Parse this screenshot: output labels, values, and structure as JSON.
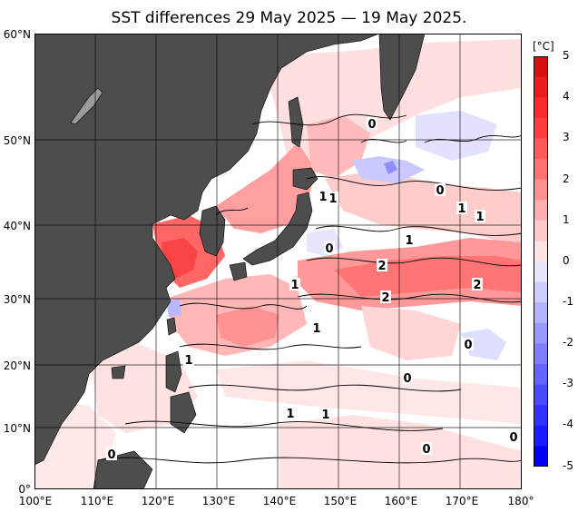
{
  "title": "SST differences 29 May 2025 — 19 May 2025.",
  "colorbar": {
    "unit": "[°C]",
    "ticks": [
      "5",
      "4",
      "3",
      "2",
      "1",
      "0",
      "-1",
      "-2",
      "-3",
      "-4",
      "-5"
    ],
    "colors_positive": [
      "#ffffff",
      "#ffe4e4",
      "#ffc9c9",
      "#ffadad",
      "#ff9090",
      "#ff7272",
      "#ff5858",
      "#ff3d3d",
      "#f82a2a",
      "#e81c1c",
      "#d80f0f"
    ],
    "colors_negative": [
      "#ffffff",
      "#e6e6ff",
      "#ccccff",
      "#b2b2ff",
      "#9898ff",
      "#7e7eff",
      "#6464ff",
      "#4a4aff",
      "#3232ff",
      "#1a1aff",
      "#0000f0"
    ]
  },
  "axes": {
    "lat_labels": [
      "60°N",
      "50°N",
      "40°N",
      "30°N",
      "20°N",
      "10°N",
      "0°"
    ],
    "lon_labels": [
      "100°E",
      "110°E",
      "120°E",
      "130°E",
      "140°E",
      "150°E",
      "160°E",
      "170°E",
      "180°"
    ]
  },
  "contour_labels": [
    "0",
    "1",
    "1",
    "0",
    "1",
    "1",
    "1",
    "0",
    "2",
    "1",
    "2",
    "2",
    "1",
    "0",
    "1",
    "0",
    "1",
    "1",
    "0",
    "0",
    "0"
  ],
  "land_color": "#4d4d4d",
  "grid_color": "#000000"
}
